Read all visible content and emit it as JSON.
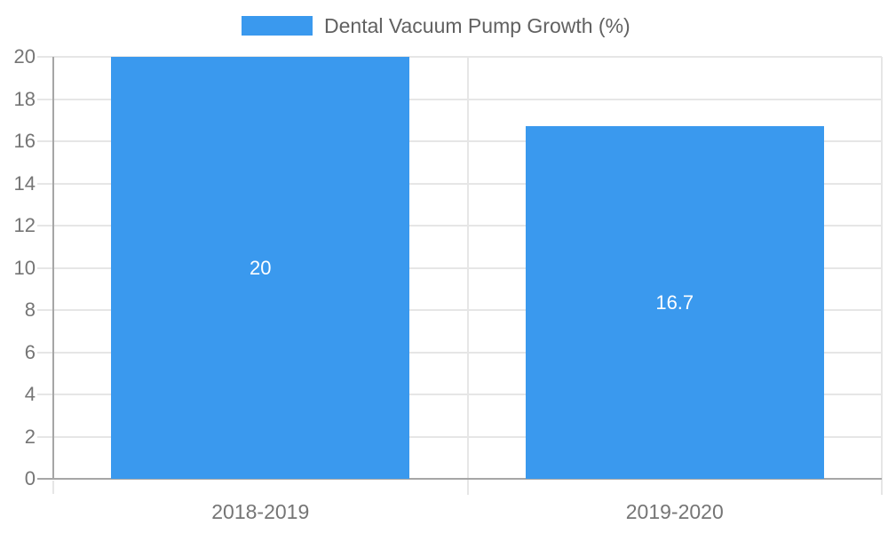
{
  "chart_data": {
    "type": "bar",
    "title": "",
    "categories": [
      "2018-2019",
      "2019-2020"
    ],
    "values": [
      20,
      16.7
    ],
    "value_labels": [
      "20",
      "16.7"
    ],
    "legend": [
      "Dental Vacuum Pump Growth (%)"
    ],
    "legend_position": "top-center",
    "xlabel": "",
    "ylabel": "",
    "ylim": [
      0,
      20
    ],
    "yticks": [
      0,
      2,
      4,
      6,
      8,
      10,
      12,
      14,
      16,
      18,
      20
    ],
    "grid": true
  },
  "colors": {
    "bar": "#3a99ee",
    "grid": "#e6e6e6",
    "axis": "#a6a6a6",
    "axis_label": "#757575",
    "legend_text": "#616161",
    "value_label": "#ffffff"
  }
}
